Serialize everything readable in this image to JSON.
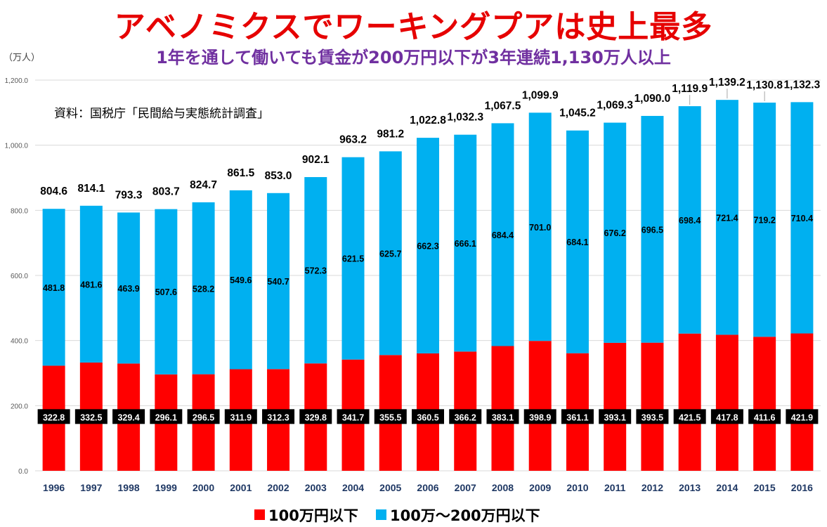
{
  "chart_data": {
    "type": "bar",
    "stacked": true,
    "title": "アベノミクスでワーキングプアは史上最多",
    "subtitle": "1年を通して働いても賃金が200万円以下が3年連続1,130万人以上",
    "unit_label": "（万人）",
    "source": "資料：国税庁「民間給与実態統計調査」",
    "categories": [
      "1996",
      "1997",
      "1998",
      "1999",
      "2000",
      "2001",
      "2002",
      "2003",
      "2004",
      "2005",
      "2006",
      "2007",
      "2008",
      "2009",
      "2010",
      "2011",
      "2012",
      "2013",
      "2014",
      "2015",
      "2016"
    ],
    "series": [
      {
        "name": "100万円以下",
        "color": "#ff0000",
        "values": [
          322.8,
          332.5,
          329.4,
          296.1,
          296.5,
          311.9,
          312.3,
          329.8,
          341.7,
          355.5,
          360.5,
          366.2,
          383.1,
          398.9,
          361.1,
          393.1,
          393.5,
          421.5,
          417.8,
          411.6,
          421.9
        ],
        "labels": [
          "322.8",
          "332.5",
          "329.4",
          "296.1",
          "296.5",
          "311.9",
          "312.3",
          "329.8",
          "341.7",
          "355.5",
          "360.5",
          "366.2",
          "383.1",
          "398.9",
          "361.1",
          "393.1",
          "393.5",
          "421.5",
          "417.8",
          "411.6",
          "421.9"
        ]
      },
      {
        "name": "100万～200万円以下",
        "color": "#00b0f0",
        "values": [
          481.8,
          481.6,
          463.9,
          507.6,
          528.2,
          549.6,
          540.7,
          572.3,
          621.5,
          625.7,
          662.3,
          666.1,
          684.4,
          701.0,
          684.1,
          676.2,
          696.5,
          698.4,
          721.4,
          719.2,
          710.4
        ],
        "labels": [
          "481.8",
          "481.6",
          "463.9",
          "507.6",
          "528.2",
          "549.6",
          "540.7",
          "572.3",
          "621.5",
          "625.7",
          "662.3",
          "666.1",
          "684.4",
          "701.0",
          "684.1",
          "676.2",
          "696.5",
          "698.4",
          "721.4",
          "719.2",
          "710.4"
        ]
      }
    ],
    "totals": [
      "804.6",
      "814.1",
      "793.3",
      "803.7",
      "824.7",
      "861.5",
      "853.0",
      "902.1",
      "963.2",
      "981.2",
      "1,022.8",
      "1,032.3",
      "1,067.5",
      "1,099.9",
      "1,045.2",
      "1,069.3",
      "1,090.0",
      "1,119.9",
      "1,139.2",
      "1,130.8",
      "1,132.3"
    ],
    "yticks": [
      "0.0",
      "200.0",
      "400.0",
      "600.0",
      "800.0",
      "1,000.0",
      "1,200.0"
    ],
    "ylim": [
      0,
      1200
    ],
    "legend_position": "bottom-center",
    "grid": true
  }
}
